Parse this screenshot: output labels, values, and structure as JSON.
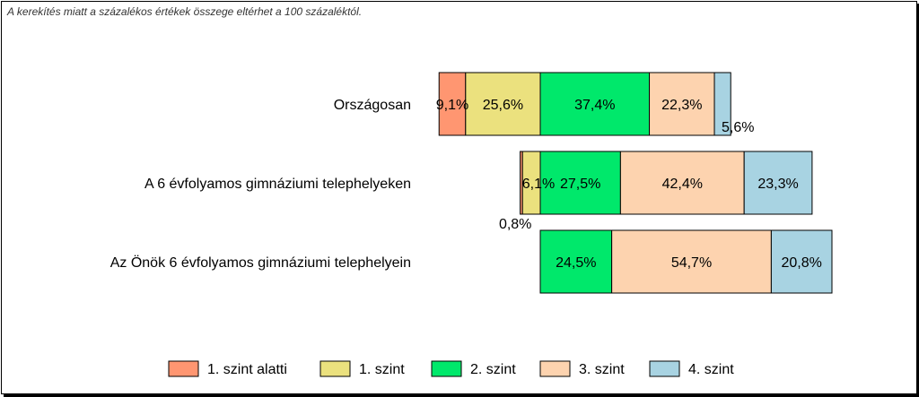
{
  "note": "A kerekítés miatt a  százalékos értékek összege eltérhet a 100 százaléktól.",
  "chart_data": {
    "type": "bar",
    "orientation": "horizontal",
    "stacked": true,
    "categories": [
      "Országosan",
      "A 6 évfolyamos gimnáziumi telephelyeken",
      "Az Önök 6 évfolyamos gimnáziumi telephelyein"
    ],
    "series": [
      {
        "name": "1. szint alatti",
        "color": "#FF9671",
        "values": [
          9.1,
          0.8,
          0.0
        ],
        "labels": [
          "9,1%",
          "0,8%",
          ""
        ]
      },
      {
        "name": "1. szint",
        "color": "#EBE17E",
        "values": [
          25.6,
          6.1,
          0.0
        ],
        "labels": [
          "25,6%",
          "6,1%",
          ""
        ]
      },
      {
        "name": "2. szint",
        "color": "#00E86B",
        "values": [
          37.4,
          27.5,
          24.5
        ],
        "labels": [
          "37,4%",
          "27,5%",
          "24,5%"
        ]
      },
      {
        "name": "3. szint",
        "color": "#FDD3AF",
        "values": [
          22.3,
          42.4,
          54.7
        ],
        "labels": [
          "22,3%",
          "42,4%",
          "54,7%"
        ]
      },
      {
        "name": "4. szint",
        "color": "#A8D3E2",
        "values": [
          5.6,
          23.3,
          20.8
        ],
        "labels": [
          "5,6%",
          "23,3%",
          "20,8%"
        ]
      }
    ],
    "legend_position": "bottom",
    "grid": false
  }
}
